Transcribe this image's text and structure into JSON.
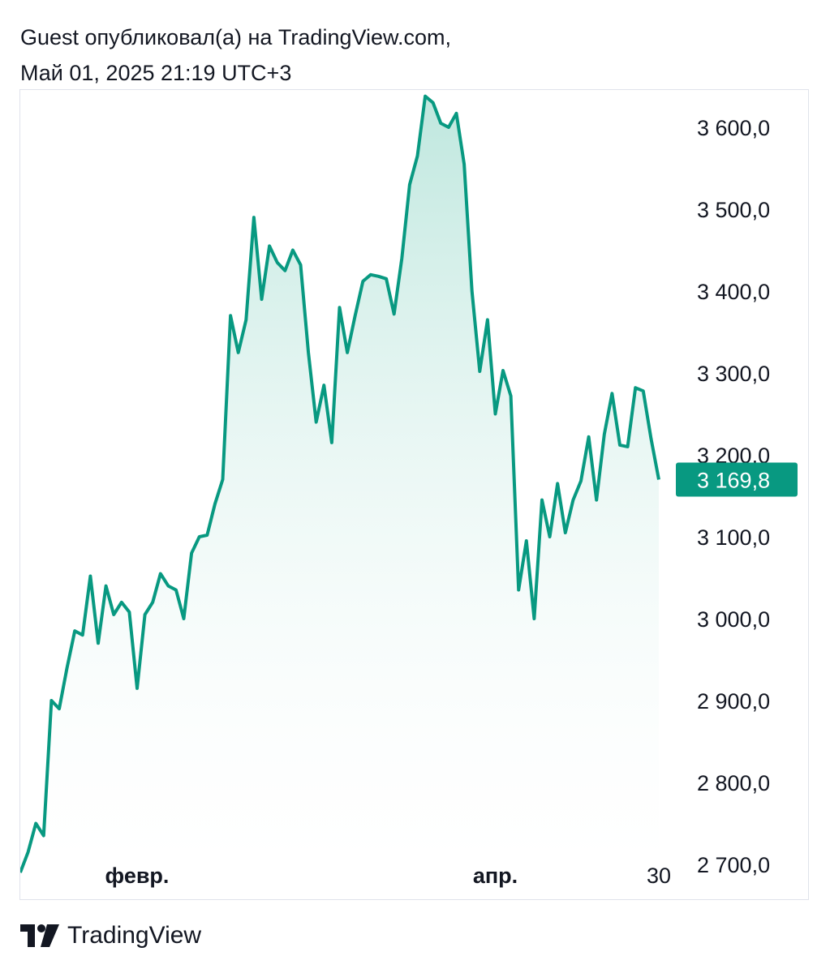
{
  "header": {
    "line1": "Guest опубликовал(а) на TradingView.com,",
    "line2": "Май 01, 2025 21:19 UTC+3"
  },
  "footer": {
    "brand": "TradingView",
    "logo_icon": "tradingview-logo-icon"
  },
  "colors": {
    "line": "#089981",
    "fill_top": "#a9dfd3",
    "label_bg": "#089981"
  },
  "chart_data": {
    "type": "area",
    "y_ticks": [
      3600,
      3500,
      3400,
      3300,
      3200,
      3100,
      3000,
      2900,
      2800,
      2700
    ],
    "y_tick_labels": [
      "3 600,0",
      "3 500,0",
      "3 400,0",
      "3 300,0",
      "3 200,0",
      "3 100,0",
      "3 000,0",
      "2 900,0",
      "2 800,0",
      "2 700,0"
    ],
    "ylim": [
      2700,
      3600
    ],
    "x_tick_labels": [
      {
        "label": "февр.",
        "index": 15,
        "bold": true
      },
      {
        "label": "апр.",
        "index": 61,
        "bold": true
      },
      {
        "label": "30",
        "index": 82,
        "bold": false
      }
    ],
    "last_value_label": "3 169,8",
    "last_value": 3169.8,
    "values": [
      2690,
      2715,
      2750,
      2735,
      2900,
      2890,
      2940,
      2985,
      2980,
      3052,
      2970,
      3040,
      3005,
      3020,
      3008,
      2915,
      3005,
      3020,
      3055,
      3040,
      3035,
      3000,
      3080,
      3100,
      3102,
      3140,
      3170,
      3370,
      3325,
      3365,
      3490,
      3390,
      3455,
      3435,
      3425,
      3450,
      3432,
      3325,
      3240,
      3285,
      3215,
      3380,
      3325,
      3370,
      3412,
      3420,
      3418,
      3415,
      3372,
      3440,
      3530,
      3565,
      3638,
      3630,
      3605,
      3600,
      3617,
      3555,
      3400,
      3302,
      3365,
      3250,
      3303,
      3272,
      3035,
      3095,
      3000,
      3145,
      3100,
      3165,
      3105,
      3145,
      3168,
      3222,
      3145,
      3225,
      3275,
      3212,
      3210,
      3282,
      3278,
      3220,
      3169.8
    ]
  }
}
